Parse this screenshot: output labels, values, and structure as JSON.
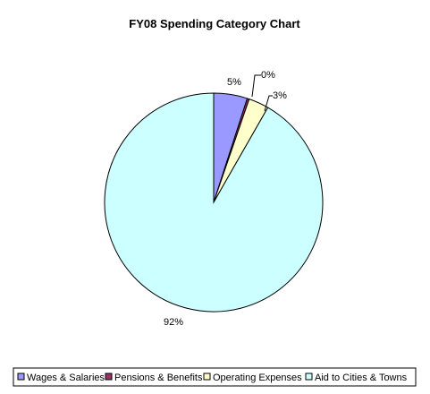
{
  "chart_data": {
    "type": "pie",
    "title": "FY08 Spending Category Chart",
    "slices": [
      {
        "label": "Wages & Salaries",
        "value": 5,
        "display": "5%",
        "color": "#9999ff"
      },
      {
        "label": "Pensions & Benefits",
        "value": 0.3,
        "display": "0%",
        "color": "#993366"
      },
      {
        "label": "Operating Expenses",
        "value": 3,
        "display": "3%",
        "color": "#ffffcc"
      },
      {
        "label": "Aid to Cities & Towns",
        "value": 92,
        "display": "92%",
        "color": "#ccffff"
      }
    ],
    "legend_position": "bottom"
  }
}
